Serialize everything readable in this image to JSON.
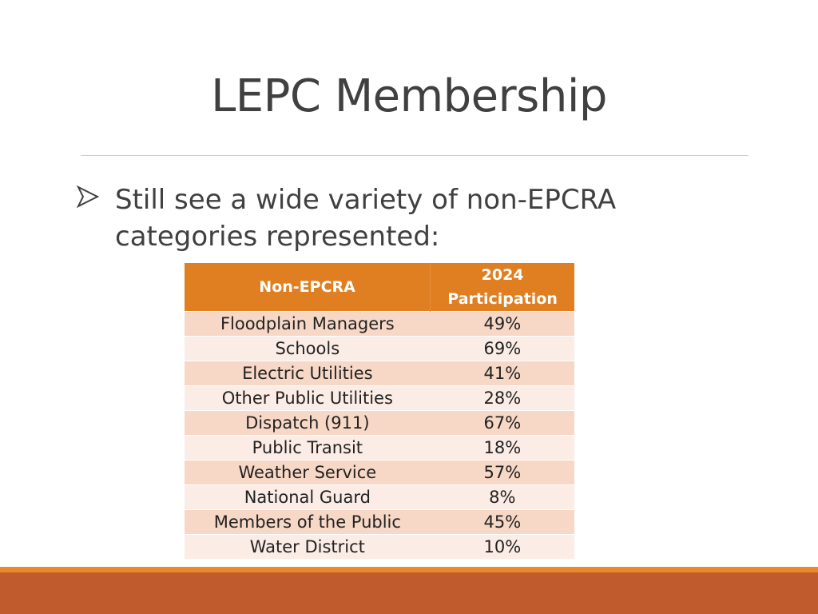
{
  "slide": {
    "title": "LEPC Membership",
    "bullet": "Still see a wide variety of non-EPCRA categories represented:"
  },
  "table": {
    "headers": {
      "category": "Non-EPCRA",
      "participation_line1": "2024",
      "participation_line2": "Participation"
    },
    "rows": [
      {
        "category": "Floodplain Managers",
        "participation": "49%"
      },
      {
        "category": "Schools",
        "participation": "69%"
      },
      {
        "category": "Electric Utilities",
        "participation": "41%"
      },
      {
        "category": "Other Public Utilities",
        "participation": "28%"
      },
      {
        "category": "Dispatch (911)",
        "participation": "67%"
      },
      {
        "category": "Public Transit",
        "participation": "18%"
      },
      {
        "category": "Weather Service",
        "participation": "57%"
      },
      {
        "category": "National Guard",
        "participation": "8%"
      },
      {
        "category": "Members of the Public",
        "participation": "45%"
      },
      {
        "category": "Water District",
        "participation": "10%"
      }
    ]
  },
  "colors": {
    "header_fill": "#e07f21",
    "row_odd": "#f7d7c6",
    "row_even": "#fbece5",
    "footer_line": "#e8892b",
    "footer_band": "#bf5b2c"
  },
  "icons": {
    "bullet": "arrowhead-bullet-icon"
  }
}
